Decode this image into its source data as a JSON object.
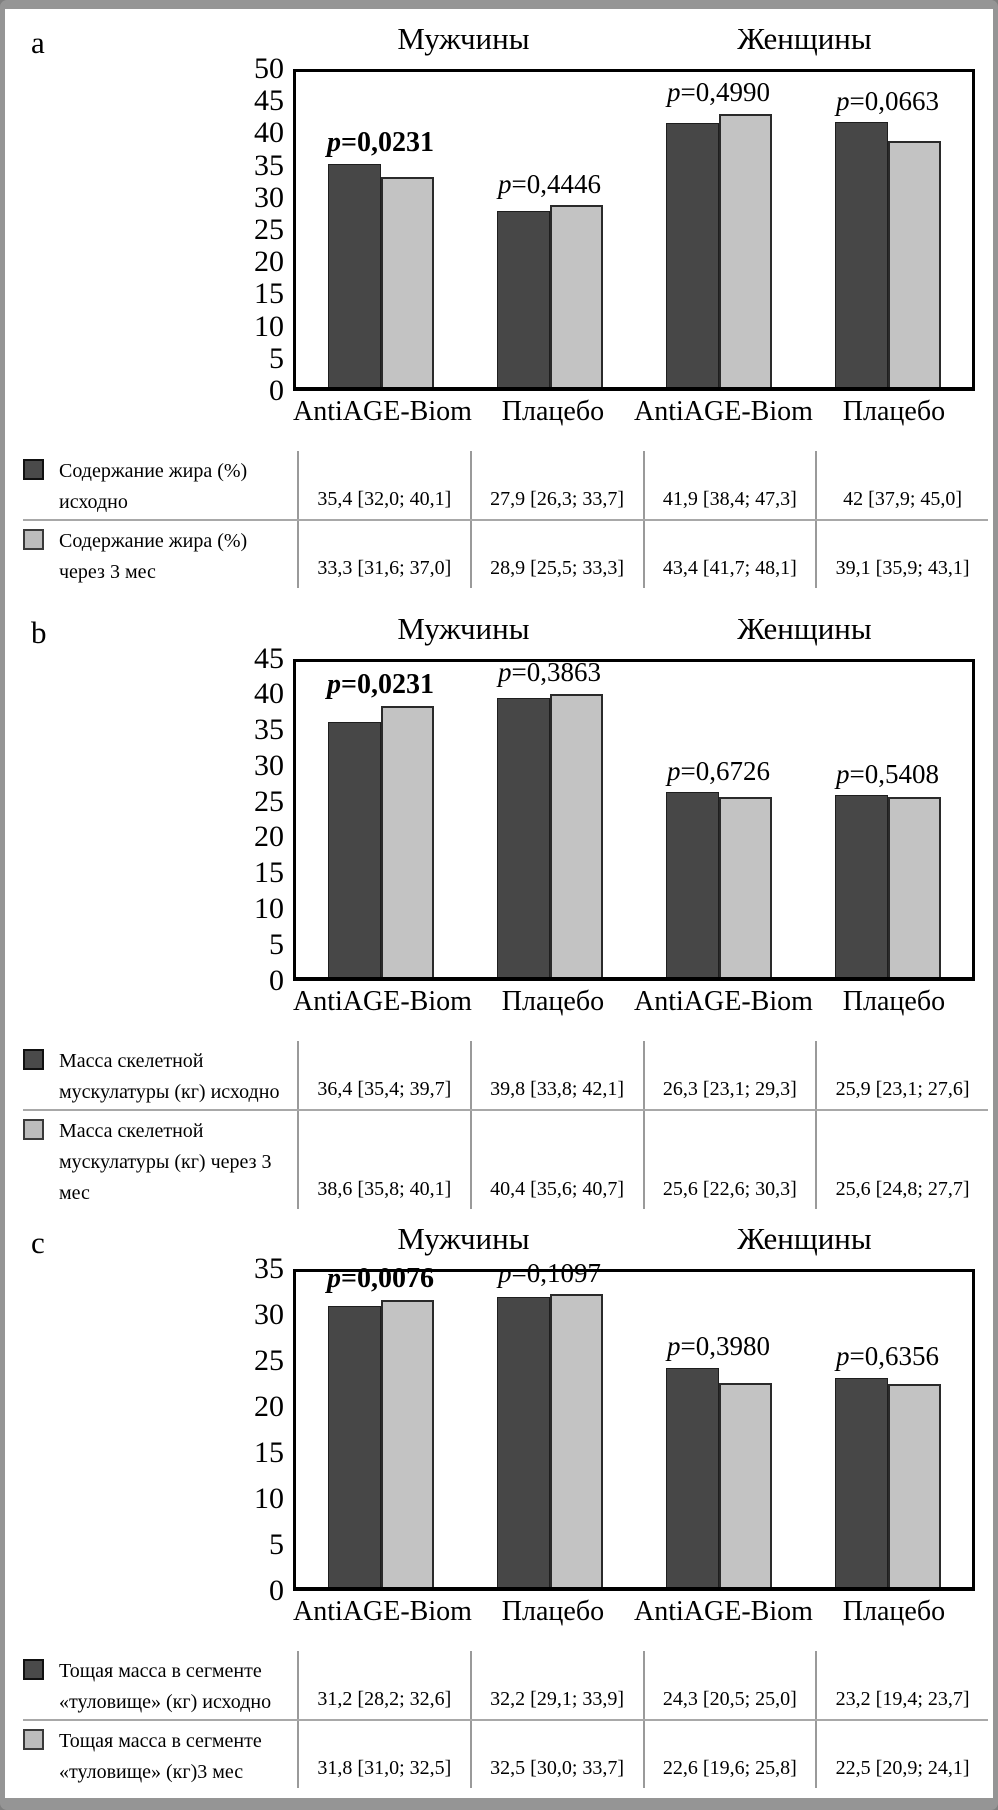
{
  "colors": {
    "bar_baseline": "#474747",
    "bar_after3mo": "#c3c3c3",
    "bar_border": "#2a2a2a",
    "plot_border": "#000000",
    "table_line": "#9a9a9a",
    "frame": "#959595"
  },
  "chart_data": [
    {
      "type": "bar",
      "panel_label": "a",
      "group_headers": [
        "Мужчины",
        "Женщины"
      ],
      "categories": [
        "AntiAGE-Biom",
        "Плацебо",
        "AntiAGE-Biom",
        "Плацебо"
      ],
      "ylim": [
        0,
        50
      ],
      "ytick_step": 5,
      "grid": false,
      "legend_position": "table-below",
      "series": [
        {
          "name": "Содержание жира (%) исходно",
          "values": [
            35.4,
            27.9,
            41.9,
            42.0
          ]
        },
        {
          "name": "Содержание жира (%) через 3 мес",
          "values": [
            33.3,
            28.9,
            43.4,
            39.1
          ]
        }
      ],
      "p_values": [
        {
          "text": "p=0,0231",
          "bold": true
        },
        {
          "text": "p=0,4446",
          "bold": false
        },
        {
          "text": "p=0,4990",
          "bold": false
        },
        {
          "text": "p=0,0663",
          "bold": false
        }
      ],
      "table": {
        "rows": [
          {
            "swatch": "dark",
            "label_line1": "Содержание жира (%)",
            "label_line2": "исходно",
            "values": [
              "35,4 [32,0; 40,1]",
              "27,9 [26,3; 33,7]",
              "41,9 [38,4; 47,3]",
              "42 [37,9; 45,0]"
            ]
          },
          {
            "swatch": "light",
            "label_line1": "Содержание жира (%)",
            "label_line2": "через 3 мес",
            "values": [
              "33,3 [31,6; 37,0]",
              "28,9 [25,5; 33,3]",
              "43,4 [41,7; 48,1]",
              "39,1 [35,9; 43,1]"
            ]
          }
        ]
      }
    },
    {
      "type": "bar",
      "panel_label": "b",
      "group_headers": [
        "Мужчины",
        "Женщины"
      ],
      "categories": [
        "AntiAGE-Biom",
        "Плацебо",
        "AntiAGE-Biom",
        "Плацебо"
      ],
      "ylim": [
        0,
        45
      ],
      "ytick_step": 5,
      "grid": false,
      "legend_position": "table-below",
      "series": [
        {
          "name": "Масса скелетной мускулатуры (кг) исходно",
          "values": [
            36.4,
            39.8,
            26.3,
            25.9
          ]
        },
        {
          "name": "Масса скелетной мускулатуры (кг) через 3 мес",
          "values": [
            38.6,
            40.4,
            25.6,
            25.6
          ]
        }
      ],
      "p_values": [
        {
          "text": "p=0,0231",
          "bold": true
        },
        {
          "text": "p=0,3863",
          "bold": false
        },
        {
          "text": "p=0,6726",
          "bold": false
        },
        {
          "text": "p=0,5408",
          "bold": false
        }
      ],
      "table": {
        "rows": [
          {
            "swatch": "dark",
            "label_line1": "Масса скелетной",
            "label_line2": "мускулатуры (кг) исходно",
            "values": [
              "36,4 [35,4; 39,7]",
              "39,8 [33,8; 42,1]",
              "26,3 [23,1; 29,3]",
              "25,9 [23,1; 27,6]"
            ]
          },
          {
            "swatch": "light",
            "label_line1": "Масса скелетной",
            "label_line2": "мускулатуры (кг) через 3 мес",
            "values": [
              "38,6 [35,8; 40,1]",
              "40,4 [35,6; 40,7]",
              "25,6 [22,6; 30,3]",
              "25,6 [24,8; 27,7]"
            ]
          }
        ]
      }
    },
    {
      "type": "bar",
      "panel_label": "c",
      "group_headers": [
        "Мужчины",
        "Женщины"
      ],
      "categories": [
        "AntiAGE-Biom",
        "Плацебо",
        "AntiAGE-Biom",
        "Плацебо"
      ],
      "ylim": [
        0,
        35
      ],
      "ytick_step": 5,
      "grid": false,
      "legend_position": "table-below",
      "series": [
        {
          "name": "Тощая масса в сегменте «туловище» (кг) исходно",
          "values": [
            31.2,
            32.2,
            24.3,
            23.2
          ]
        },
        {
          "name": "Тощая масса в сегменте «туловище» (кг) 3 мес",
          "values": [
            31.8,
            32.5,
            22.6,
            22.5
          ]
        }
      ],
      "p_values": [
        {
          "text": "p=0,0076",
          "bold": true
        },
        {
          "text": "p=0,1097",
          "bold": false
        },
        {
          "text": "p=0,3980",
          "bold": false
        },
        {
          "text": "p=0,6356",
          "bold": false
        }
      ],
      "table": {
        "rows": [
          {
            "swatch": "dark",
            "label_line1": "Тощая масса в сегменте",
            "label_line2": "«туловище» (кг) исходно",
            "values": [
              "31,2 [28,2; 32,6]",
              "32,2 [29,1; 33,9]",
              "24,3 [20,5; 25,0]",
              "23,2 [19,4; 23,7]"
            ]
          },
          {
            "swatch": "light",
            "label_line1": "Тощая масса в сегменте",
            "label_line2": "«туловище» (кг)3 мес",
            "values": [
              "31,8 [31,0; 32,5]",
              "32,5 [30,0; 33,7]",
              "22,6 [19,6; 25,8]",
              "22,5 [20,9; 24,1]"
            ]
          }
        ]
      }
    }
  ]
}
